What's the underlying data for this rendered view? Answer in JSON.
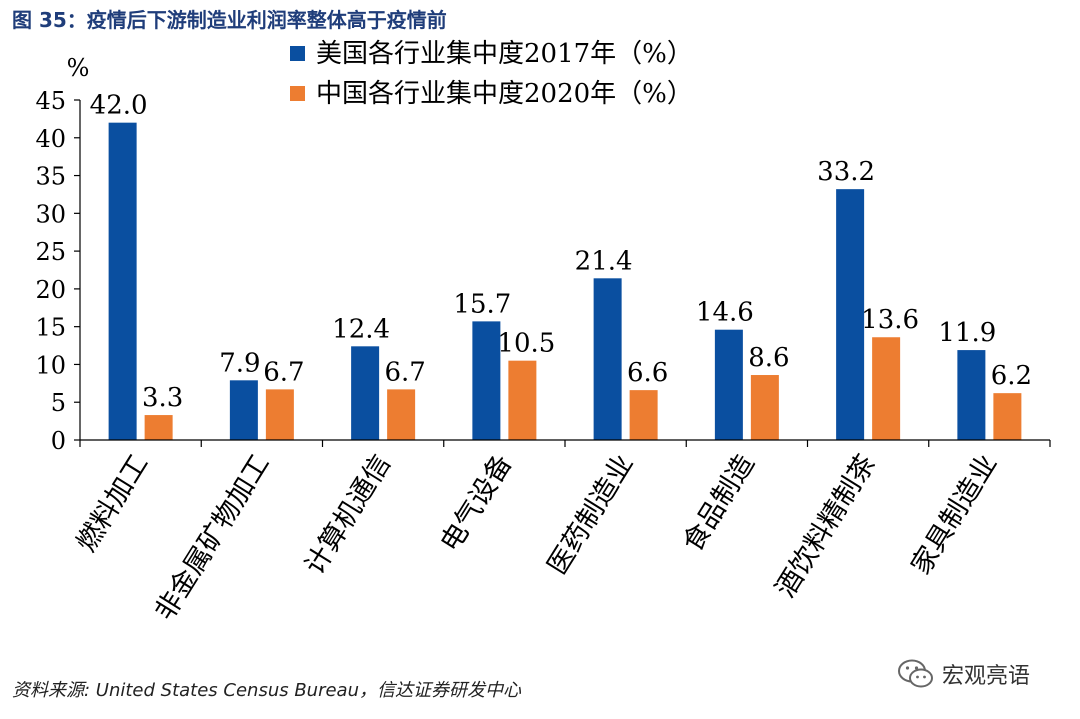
{
  "figure_title": "图 35：疫情后下游制造业利润率整体高于疫情前",
  "source_text": "资料来源: United States Census Bureau，信达证券研发中心",
  "watermark_text": "宏观亮语",
  "colors": {
    "series_2017": "#0a4fa0",
    "series_2020": "#ed7d31",
    "title": "#1f3d7a"
  },
  "chart_data": {
    "type": "bar",
    "ylabel": "%",
    "ylim": [
      0,
      45
    ],
    "yticks": [
      0,
      5,
      10,
      15,
      20,
      25,
      30,
      35,
      40,
      45
    ],
    "categories": [
      "燃料加工",
      "非金属矿物加工",
      "计算机通信",
      "电气设备",
      "医药制造业",
      "食品制造",
      "酒饮料精制茶",
      "家具制造业"
    ],
    "series": [
      {
        "name": "美国各行业集中度2017年（%）",
        "values": [
          42.0,
          7.9,
          12.4,
          15.7,
          21.4,
          14.6,
          33.2,
          11.9
        ]
      },
      {
        "name": "中国各行业集中度2020年（%）",
        "values": [
          3.3,
          6.7,
          6.7,
          10.5,
          6.6,
          8.6,
          13.6,
          6.2
        ]
      }
    ],
    "legend_position": "top-center",
    "grid": false
  }
}
